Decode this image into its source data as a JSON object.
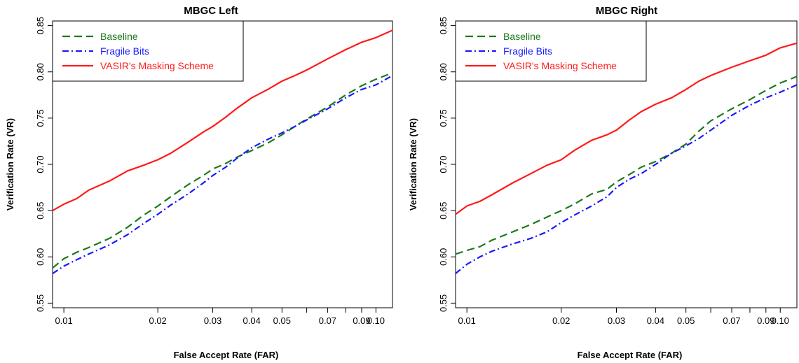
{
  "chart_data": [
    {
      "type": "line",
      "title": "MBGC Left",
      "xlabel": "False Accept Rate (FAR)",
      "ylabel": "Verification Rate (VR)",
      "x_scale": "log",
      "xlim": [
        0.0092,
        0.113
      ],
      "ylim": [
        0.545,
        0.855
      ],
      "x_ticks": [
        0.01,
        0.02,
        0.03,
        0.04,
        0.05,
        0.07,
        0.09,
        0.1
      ],
      "x_tick_labels": [
        "0.01",
        "0.02",
        "0.03",
        "0.04",
        "0.05",
        "0.07",
        "0.09",
        "0.10"
      ],
      "x_minor_ticks": [
        0.06,
        0.08
      ],
      "y_ticks": [
        0.55,
        0.6,
        0.65,
        0.7,
        0.75,
        0.8,
        0.85
      ],
      "y_tick_labels": [
        "0.55",
        "0.60",
        "0.65",
        "0.70",
        "0.75",
        "0.80",
        "0.85"
      ],
      "grid": false,
      "legend_position": "top-left",
      "series": [
        {
          "name": "Baseline",
          "color": "#1b7a1b",
          "dash": "dashed",
          "x": [
            0.0092,
            0.01,
            0.011,
            0.012,
            0.014,
            0.016,
            0.018,
            0.02,
            0.022,
            0.025,
            0.028,
            0.03,
            0.033,
            0.036,
            0.04,
            0.045,
            0.05,
            0.055,
            0.06,
            0.07,
            0.08,
            0.09,
            0.1,
            0.113
          ],
          "y": [
            0.588,
            0.598,
            0.605,
            0.61,
            0.62,
            0.632,
            0.645,
            0.655,
            0.665,
            0.678,
            0.688,
            0.695,
            0.701,
            0.708,
            0.715,
            0.723,
            0.732,
            0.741,
            0.749,
            0.762,
            0.775,
            0.785,
            0.792,
            0.799
          ]
        },
        {
          "name": "Fragile Bits",
          "color": "#1a1aff",
          "dash": "dotdash",
          "x": [
            0.0092,
            0.01,
            0.011,
            0.012,
            0.014,
            0.016,
            0.018,
            0.02,
            0.022,
            0.025,
            0.028,
            0.03,
            0.033,
            0.036,
            0.04,
            0.045,
            0.05,
            0.055,
            0.06,
            0.07,
            0.08,
            0.09,
            0.1,
            0.113
          ],
          "y": [
            0.582,
            0.59,
            0.597,
            0.603,
            0.613,
            0.624,
            0.636,
            0.646,
            0.656,
            0.668,
            0.68,
            0.688,
            0.697,
            0.707,
            0.718,
            0.727,
            0.734,
            0.741,
            0.748,
            0.76,
            0.772,
            0.781,
            0.786,
            0.796
          ]
        },
        {
          "name": "VASIR's Masking Scheme",
          "color": "#ff1a1a",
          "dash": "solid",
          "x": [
            0.0092,
            0.01,
            0.011,
            0.012,
            0.014,
            0.016,
            0.018,
            0.02,
            0.022,
            0.025,
            0.028,
            0.03,
            0.033,
            0.036,
            0.04,
            0.045,
            0.05,
            0.055,
            0.06,
            0.07,
            0.08,
            0.09,
            0.1,
            0.113
          ],
          "y": [
            0.65,
            0.657,
            0.663,
            0.672,
            0.682,
            0.693,
            0.699,
            0.705,
            0.712,
            0.724,
            0.735,
            0.741,
            0.751,
            0.761,
            0.772,
            0.781,
            0.79,
            0.796,
            0.802,
            0.814,
            0.824,
            0.832,
            0.837,
            0.845
          ]
        }
      ]
    },
    {
      "type": "line",
      "title": "MBGC Right",
      "xlabel": "False Accept Rate (FAR)",
      "ylabel": "Verification Rate (VR)",
      "x_scale": "log",
      "xlim": [
        0.0092,
        0.113
      ],
      "ylim": [
        0.545,
        0.855
      ],
      "x_ticks": [
        0.01,
        0.02,
        0.03,
        0.04,
        0.05,
        0.07,
        0.09,
        0.1
      ],
      "x_tick_labels": [
        "0.01",
        "0.02",
        "0.03",
        "0.04",
        "0.05",
        "0.07",
        "0.09",
        "0.10"
      ],
      "x_minor_ticks": [
        0.06,
        0.08
      ],
      "y_ticks": [
        0.55,
        0.6,
        0.65,
        0.7,
        0.75,
        0.8,
        0.85
      ],
      "y_tick_labels": [
        "0.55",
        "0.60",
        "0.65",
        "0.70",
        "0.75",
        "0.80",
        "0.85"
      ],
      "grid": false,
      "legend_position": "top-left",
      "series": [
        {
          "name": "Baseline",
          "color": "#1b7a1b",
          "dash": "dashed",
          "x": [
            0.0092,
            0.01,
            0.011,
            0.012,
            0.014,
            0.016,
            0.018,
            0.02,
            0.022,
            0.025,
            0.028,
            0.03,
            0.033,
            0.036,
            0.04,
            0.045,
            0.05,
            0.055,
            0.06,
            0.07,
            0.08,
            0.09,
            0.1,
            0.113
          ],
          "y": [
            0.603,
            0.607,
            0.611,
            0.618,
            0.627,
            0.635,
            0.643,
            0.65,
            0.657,
            0.668,
            0.673,
            0.681,
            0.689,
            0.697,
            0.703,
            0.712,
            0.722,
            0.736,
            0.747,
            0.76,
            0.77,
            0.78,
            0.788,
            0.795
          ]
        },
        {
          "name": "Fragile Bits",
          "color": "#1a1aff",
          "dash": "dotdash",
          "x": [
            0.0092,
            0.01,
            0.011,
            0.012,
            0.014,
            0.016,
            0.018,
            0.02,
            0.022,
            0.025,
            0.028,
            0.03,
            0.033,
            0.036,
            0.04,
            0.045,
            0.05,
            0.055,
            0.06,
            0.07,
            0.08,
            0.09,
            0.1,
            0.113
          ],
          "y": [
            0.582,
            0.592,
            0.6,
            0.606,
            0.614,
            0.62,
            0.627,
            0.637,
            0.645,
            0.655,
            0.665,
            0.675,
            0.684,
            0.69,
            0.7,
            0.712,
            0.72,
            0.728,
            0.737,
            0.753,
            0.764,
            0.772,
            0.778,
            0.786
          ]
        },
        {
          "name": "VASIR's Masking Scheme",
          "color": "#ff1a1a",
          "dash": "solid",
          "x": [
            0.0092,
            0.01,
            0.011,
            0.012,
            0.014,
            0.016,
            0.018,
            0.02,
            0.022,
            0.025,
            0.028,
            0.03,
            0.033,
            0.036,
            0.04,
            0.045,
            0.05,
            0.055,
            0.06,
            0.07,
            0.08,
            0.09,
            0.1,
            0.113
          ],
          "y": [
            0.646,
            0.655,
            0.66,
            0.667,
            0.68,
            0.69,
            0.699,
            0.705,
            0.715,
            0.726,
            0.732,
            0.737,
            0.748,
            0.757,
            0.765,
            0.772,
            0.781,
            0.79,
            0.796,
            0.805,
            0.812,
            0.818,
            0.826,
            0.831
          ]
        }
      ]
    }
  ]
}
